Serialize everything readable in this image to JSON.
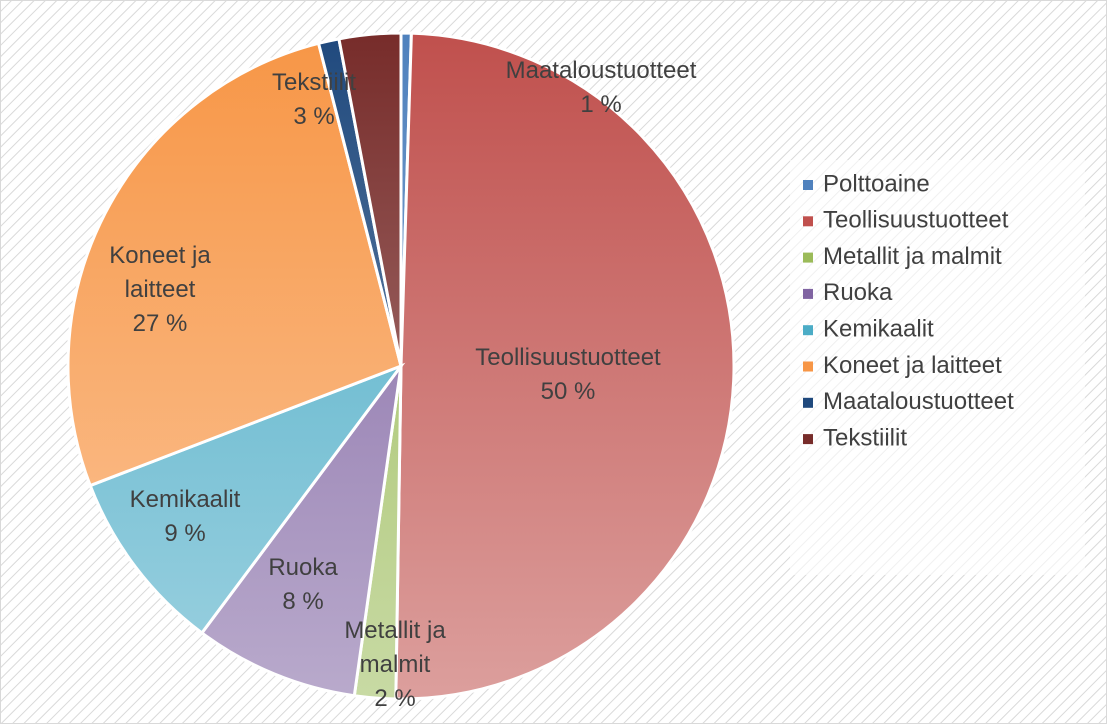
{
  "chart_data": {
    "type": "pie",
    "categories": [
      "Polttoaine",
      "Teollisuustuotteet",
      "Metallit ja malmit",
      "Ruoka",
      "Kemikaalit",
      "Koneet ja laitteet",
      "Maataloustuotteet",
      "Tekstiilit"
    ],
    "values": [
      0.5,
      50,
      2,
      8,
      9,
      27,
      1,
      3
    ],
    "value_labels": [
      null,
      "50 %",
      "2 %",
      "8 %",
      "9 %",
      "27 %",
      "1 %",
      "3 %"
    ],
    "colors": [
      "#4f81bd",
      "#c0504d",
      "#9bbb59",
      "#8064a2",
      "#4bacc6",
      "#f79646",
      "#1f497d",
      "#772c2a"
    ],
    "legend": "right"
  }
}
